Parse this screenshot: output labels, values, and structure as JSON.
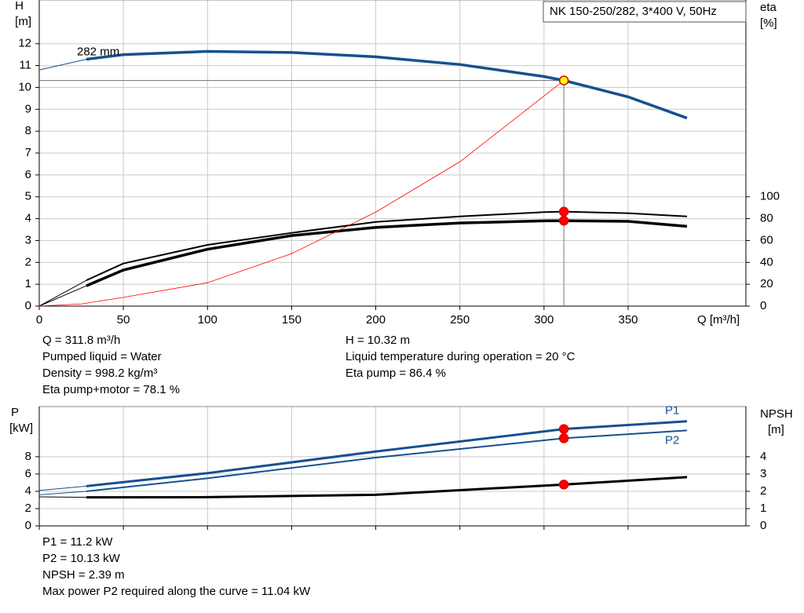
{
  "chart_data": [
    {
      "type": "line",
      "title": "NK 150-250/282, 3*400 V, 50Hz",
      "y_label": "H",
      "y_unit": "[m]",
      "y2_label": "eta",
      "y2_unit": "[%]",
      "x_label": "Q [m³/h]",
      "xlim": [
        0,
        420
      ],
      "xticks": [
        0,
        50,
        100,
        150,
        200,
        250,
        300,
        350
      ],
      "ylim": [
        0,
        14
      ],
      "yticks": [
        0,
        1,
        2,
        3,
        4,
        5,
        6,
        7,
        8,
        9,
        10,
        11,
        12
      ],
      "y2lim": [
        0,
        280
      ],
      "y2ticks": [
        0,
        20,
        40,
        60,
        80,
        100
      ],
      "grid": true,
      "operating_point": {
        "x": 311.8,
        "y": 10.32
      },
      "series": [
        {
          "name": "282 mm",
          "color": "#17508f",
          "width": 3.5,
          "thin_start": true,
          "marker_fill": "#ffff00",
          "x": [
            0,
            28,
            50,
            100,
            150,
            200,
            250,
            300,
            311.8,
            350,
            385
          ],
          "values": [
            10.8,
            11.29,
            11.5,
            11.65,
            11.6,
            11.4,
            11.05,
            10.5,
            10.32,
            9.57,
            8.6
          ]
        },
        {
          "color": "#000000",
          "width": 2,
          "thin_start": true,
          "marker_fill": "#ff0000",
          "axis": "y2",
          "x": [
            0,
            28,
            50,
            100,
            150,
            200,
            250,
            300,
            311.8,
            350,
            385
          ],
          "values": [
            0,
            23.6,
            39,
            56,
            67,
            77,
            82,
            86,
            86.4,
            85,
            82
          ]
        },
        {
          "color": "#000000",
          "width": 3.5,
          "thin_start": true,
          "marker_fill": "#ff0000",
          "axis": "y2",
          "x": [
            0,
            28,
            50,
            100,
            150,
            200,
            250,
            300,
            311.8,
            350,
            385
          ],
          "values": [
            0,
            18.6,
            33,
            52,
            64.5,
            72,
            76,
            78,
            78.1,
            77.5,
            73
          ]
        },
        {
          "color": "#ff0000",
          "width": 0.8,
          "x": [
            0,
            25,
            50,
            100,
            150,
            200,
            250,
            311.8
          ],
          "values": [
            0,
            0.1,
            0.4,
            1.07,
            2.4,
            4.3,
            6.6,
            10.32
          ]
        }
      ],
      "annotations_left": [
        "Q = 311.8 m³/h",
        "Pumped liquid = Water",
        "Density = 998.2 kg/m³",
        "Eta pump+motor = 78.1 %"
      ],
      "annotations_right": [
        "H = 10.32 m",
        "Liquid temperature during operation = 20 °C",
        "Eta pump = 86.4 %"
      ]
    },
    {
      "type": "line",
      "y_label": "P",
      "y_unit": "[kW]",
      "y2_label": "NPSH",
      "y2_unit": "[m]",
      "xlim": [
        0,
        420
      ],
      "xticks": [
        0,
        50,
        100,
        150,
        200,
        250,
        300,
        350
      ],
      "ylim": [
        0,
        13.8
      ],
      "yticks": [
        0,
        2,
        4,
        6,
        8
      ],
      "y2lim": [
        0,
        6.9
      ],
      "y2ticks": [
        0,
        1,
        2,
        3,
        4
      ],
      "grid": true,
      "series": [
        {
          "name": "P1",
          "color": "#17508f",
          "width": 3,
          "thin_start": true,
          "marker_fill": "#ff0000",
          "x": [
            0,
            28,
            100,
            200,
            311.8,
            385
          ],
          "values": [
            4.1,
            4.6,
            6.1,
            8.6,
            11.2,
            12.1
          ]
        },
        {
          "name": "P2",
          "color": "#17508f",
          "width": 2,
          "thin_start": true,
          "marker_fill": "#ff0000",
          "x": [
            0,
            28,
            100,
            200,
            311.8,
            385
          ],
          "values": [
            3.6,
            4.0,
            5.5,
            7.9,
            10.13,
            11.04
          ]
        },
        {
          "color": "#000000",
          "width": 3,
          "thin_start": true,
          "marker_fill": "#ff0000",
          "axis": "y2",
          "x": [
            0,
            28,
            100,
            200,
            311.8,
            385
          ],
          "values": [
            1.68,
            1.65,
            1.66,
            1.8,
            2.39,
            2.82
          ]
        }
      ],
      "annotations_left": [
        "P1 = 11.2 kW",
        "P2 = 10.13 kW",
        "NPSH = 2.39 m",
        "Max power P2 required along the curve = 11.04 kW"
      ]
    }
  ]
}
